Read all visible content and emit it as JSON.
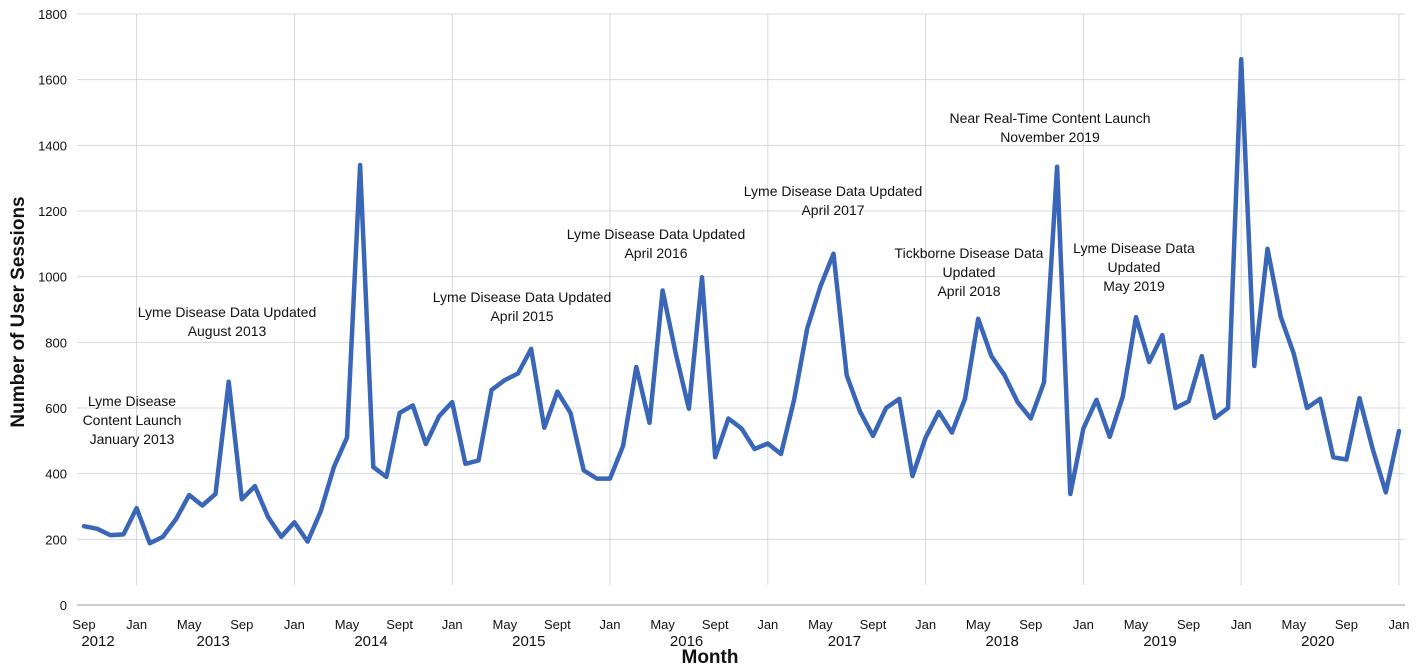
{
  "chart_data": {
    "type": "line",
    "xlabel": "Month",
    "ylabel": "Number of User Sessions",
    "ylim": [
      0,
      1800
    ],
    "y_ticks": [
      0,
      200,
      400,
      600,
      800,
      1000,
      1200,
      1400,
      1600,
      1800
    ],
    "grid": "horizontal and vertical",
    "line_color": "#3a66b8",
    "month_ticks": [
      {
        "label": "Sep",
        "year": "2012",
        "index": 0
      },
      {
        "label": "Jan",
        "index": 4
      },
      {
        "label": "May",
        "year": "2013",
        "index": 8
      },
      {
        "label": "Sep",
        "index": 12
      },
      {
        "label": "Jan",
        "index": 16
      },
      {
        "label": "May",
        "year": "2014",
        "index": 20
      },
      {
        "label": "Sept",
        "index": 24
      },
      {
        "label": "Jan",
        "index": 28
      },
      {
        "label": "May",
        "year": "2015",
        "index": 32
      },
      {
        "label": "Sept",
        "index": 36
      },
      {
        "label": "Jan",
        "index": 40
      },
      {
        "label": "May",
        "year": "2016",
        "index": 44
      },
      {
        "label": "Sept",
        "index": 48
      },
      {
        "label": "Jan",
        "index": 52
      },
      {
        "label": "May",
        "year": "2017",
        "index": 56
      },
      {
        "label": "Sept",
        "index": 60
      },
      {
        "label": "Jan",
        "index": 64
      },
      {
        "label": "May",
        "year": "2018",
        "index": 68
      },
      {
        "label": "Sep",
        "index": 72
      },
      {
        "label": "Jan",
        "index": 76
      },
      {
        "label": "May",
        "year": "2019",
        "index": 80
      },
      {
        "label": "Sep",
        "index": 84
      },
      {
        "label": "Jan",
        "index": 88
      },
      {
        "label": "May",
        "year": "2020",
        "index": 92
      },
      {
        "label": "Sep",
        "index": 96
      },
      {
        "label": "Jan",
        "index": 100
      }
    ],
    "series": [
      {
        "values": [
          240,
          232,
          213,
          215,
          295,
          188,
          208,
          262,
          335,
          303,
          338,
          680,
          322,
          362,
          268,
          208,
          252,
          193,
          285,
          420,
          510,
          1340,
          420,
          390,
          585,
          608,
          490,
          575,
          618,
          430,
          440,
          655,
          685,
          705,
          780,
          540,
          650,
          585,
          410,
          385,
          385,
          485,
          725,
          555,
          958,
          765,
          598,
          998,
          450,
          568,
          538,
          475,
          492,
          460,
          625,
          843,
          970,
          1070,
          700,
          590,
          515,
          600,
          628,
          393,
          510,
          588,
          525,
          628,
          872,
          758,
          700,
          618,
          568,
          678,
          1335,
          338,
          538,
          625,
          512,
          635,
          877,
          740,
          822,
          600,
          620,
          758,
          570,
          600,
          1662,
          728,
          1085,
          878,
          765,
          600,
          628,
          450,
          443,
          630,
          475,
          343,
          530
        ]
      }
    ],
    "annotations": [
      {
        "lines": [
          "Lyme Disease",
          "Content Launch",
          "January 2013"
        ],
        "index": 4
      },
      {
        "lines": [
          "Lyme Disease Data Updated",
          "August 2013"
        ],
        "index": 11
      },
      {
        "lines": [
          "Lyme Disease Data Updated",
          "April 2015"
        ],
        "index": 31
      },
      {
        "lines": [
          "Lyme Disease Data Updated",
          "April 2016"
        ],
        "index": 43
      },
      {
        "lines": [
          "Lyme Disease Data Updated",
          "April 2017"
        ],
        "index": 55
      },
      {
        "lines": [
          "Tickborne Disease Data",
          "Updated",
          "April 2018"
        ],
        "index": 67
      },
      {
        "lines": [
          "Near Real-Time Content Launch",
          "November 2019"
        ],
        "index": 86
      },
      {
        "lines": [
          "Lyme Disease Data",
          "Updated",
          "May 2019"
        ],
        "index": 80
      }
    ]
  }
}
